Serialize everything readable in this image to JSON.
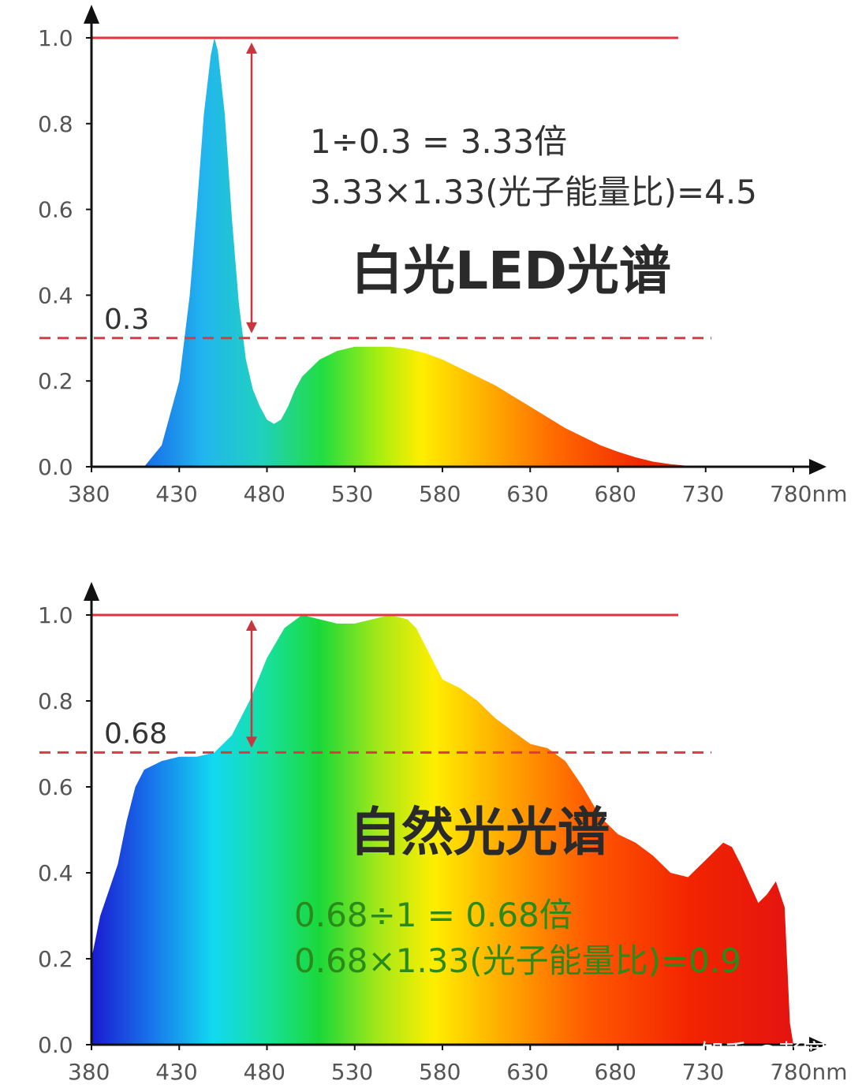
{
  "chart_data": [
    {
      "type": "area",
      "title": "白光LED光谱",
      "x_tick_labels": [
        "380",
        "430",
        "480",
        "530",
        "580",
        "630",
        "680",
        "730",
        "780nm"
      ],
      "y_tick_labels": [
        "0.0",
        "0.2",
        "0.4",
        "0.6",
        "0.8",
        "1.0"
      ],
      "xlim": [
        380,
        780
      ],
      "ylim": [
        0,
        1.0
      ],
      "grid": false,
      "x": [
        380,
        410,
        420,
        430,
        436,
        440,
        444,
        448,
        450,
        452,
        456,
        460,
        464,
        468,
        472,
        476,
        480,
        484,
        488,
        492,
        496,
        500,
        510,
        520,
        530,
        540,
        550,
        560,
        570,
        580,
        590,
        600,
        610,
        620,
        630,
        640,
        650,
        660,
        670,
        680,
        690,
        700,
        710,
        720,
        730
      ],
      "values": [
        0,
        0,
        0.05,
        0.2,
        0.4,
        0.6,
        0.82,
        0.96,
        1.0,
        0.97,
        0.82,
        0.58,
        0.38,
        0.25,
        0.18,
        0.14,
        0.11,
        0.1,
        0.11,
        0.14,
        0.18,
        0.21,
        0.25,
        0.27,
        0.28,
        0.28,
        0.28,
        0.275,
        0.265,
        0.25,
        0.23,
        0.21,
        0.19,
        0.165,
        0.14,
        0.115,
        0.09,
        0.07,
        0.05,
        0.035,
        0.022,
        0.012,
        0.006,
        0.002,
        0
      ],
      "reference_lines": [
        {
          "value": 1.0,
          "style": "solid",
          "color": "#e8313f"
        },
        {
          "value": 0.3,
          "style": "dashed",
          "color": "#d93a48",
          "label": "0.3"
        }
      ],
      "annotations": [
        "1÷0.3 = 3.33倍",
        "3.33×1.33(光子能量比)=4.5"
      ]
    },
    {
      "type": "area",
      "title": "自然光光谱",
      "x_tick_labels": [
        "380",
        "430",
        "480",
        "530",
        "580",
        "630",
        "680",
        "730",
        "780nm"
      ],
      "y_tick_labels": [
        "0.0",
        "0.2",
        "0.4",
        "0.6",
        "0.8",
        "1.0"
      ],
      "xlim": [
        380,
        780
      ],
      "ylim": [
        0,
        1.0
      ],
      "grid": false,
      "x": [
        380,
        385,
        390,
        395,
        400,
        405,
        410,
        420,
        430,
        440,
        450,
        460,
        470,
        480,
        490,
        500,
        510,
        520,
        530,
        540,
        550,
        560,
        565,
        570,
        580,
        590,
        600,
        610,
        620,
        630,
        640,
        650,
        660,
        670,
        680,
        690,
        700,
        710,
        720,
        730,
        740,
        745,
        750,
        760,
        765,
        770,
        775,
        778,
        780
      ],
      "values": [
        0.2,
        0.3,
        0.36,
        0.42,
        0.52,
        0.6,
        0.64,
        0.66,
        0.67,
        0.67,
        0.68,
        0.72,
        0.8,
        0.9,
        0.97,
        1.0,
        0.99,
        0.98,
        0.98,
        0.99,
        1.0,
        0.99,
        0.97,
        0.93,
        0.85,
        0.83,
        0.8,
        0.76,
        0.73,
        0.7,
        0.69,
        0.66,
        0.6,
        0.53,
        0.49,
        0.47,
        0.44,
        0.4,
        0.39,
        0.43,
        0.47,
        0.46,
        0.42,
        0.33,
        0.35,
        0.38,
        0.32,
        0.05,
        0
      ],
      "reference_lines": [
        {
          "value": 1.0,
          "style": "solid",
          "color": "#e8313f"
        },
        {
          "value": 0.68,
          "style": "dashed",
          "color": "#d93a48",
          "label": "0.68"
        }
      ],
      "annotations": [
        "0.68÷1 = 0.68倍",
        "0.68×1.33(光子能量比)=0.9"
      ]
    }
  ],
  "watermark": "知乎 @彭宽",
  "colors": {
    "axis": "#111111",
    "reference": "#e8313f",
    "annotation_green": "#2a8a1a"
  }
}
